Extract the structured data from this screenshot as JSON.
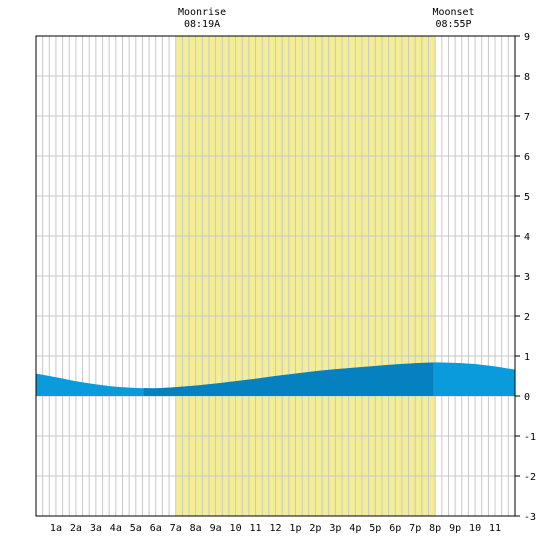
{
  "chart_data": {
    "type": "area",
    "title": "",
    "xlabel": "",
    "ylabel": "",
    "xlim": [
      0,
      24
    ],
    "ylim": [
      -3,
      9
    ],
    "yticks": [
      -3,
      -2,
      -1,
      0,
      1,
      2,
      3,
      4,
      5,
      6,
      7,
      8,
      9
    ],
    "xtick_labels": [
      "1a",
      "2a",
      "3a",
      "4a",
      "5a",
      "6a",
      "7a",
      "8a",
      "9a",
      "10",
      "11",
      "12",
      "1p",
      "2p",
      "3p",
      "4p",
      "5p",
      "6p",
      "7p",
      "8p",
      "9p",
      "10",
      "11"
    ],
    "grid": true,
    "moon_window": {
      "start_hour": 7.0,
      "end_hour": 20.0
    },
    "annotations": [
      {
        "title": "Moonrise",
        "time": "08:19A",
        "hour": 8.32
      },
      {
        "title": "Moonset",
        "time": "08:55P",
        "hour": 20.92
      }
    ],
    "dark_band": {
      "start_hour": 5.4,
      "end_hour": 19.9
    },
    "series": [
      {
        "x": [
          0,
          1,
          2,
          3,
          4,
          5,
          6,
          7,
          8,
          9,
          10,
          11,
          12,
          13,
          14,
          15,
          16,
          17,
          18,
          19,
          20,
          21,
          22,
          23,
          24
        ],
        "values": [
          0.56,
          0.47,
          0.37,
          0.29,
          0.23,
          0.2,
          0.19,
          0.22,
          0.26,
          0.31,
          0.37,
          0.43,
          0.5,
          0.56,
          0.62,
          0.67,
          0.71,
          0.75,
          0.79,
          0.82,
          0.84,
          0.83,
          0.8,
          0.74,
          0.66
        ]
      }
    ],
    "colors": {
      "background": "#ffffff",
      "grid": "#c8c8c8",
      "moon_window": "#f3ee96",
      "tide_light": "#0a9bdc",
      "tide_dark": "#0581bf",
      "axis": "#000000"
    }
  }
}
